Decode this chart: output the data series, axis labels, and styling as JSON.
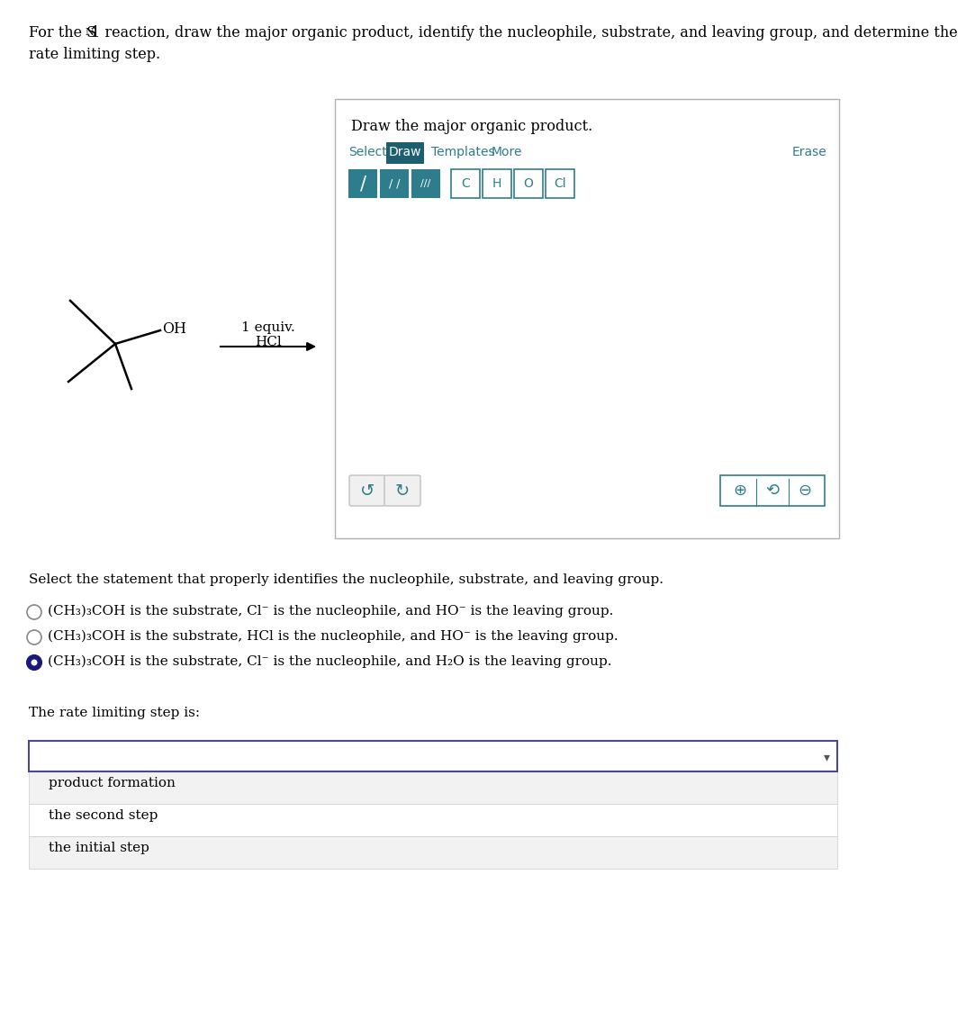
{
  "header1": "For the S",
  "header_sub": "N",
  "header2": "1 reaction, draw the major organic product, identify the nucleophile, substrate, and leaving group, and determine the",
  "header3": "rate limiting step.",
  "box_title": "Draw the major organic product.",
  "tab_select": "Select",
  "tab_draw": "Draw",
  "tab_templates": "Templates",
  "tab_more": "More",
  "tab_erase": "Erase",
  "reagent_line1": "1 equiv.",
  "reagent_line2": "HCl",
  "select_text": "Select the statement that properly identifies the nucleophile, substrate, and leaving group.",
  "option1": "(CH₃)₃COH is the substrate, Cl⁻ is the nucleophile, and HO⁻ is the leaving group.",
  "option2": "(CH₃)₃COH is the substrate, HCl is the nucleophile, and HO⁻ is the leaving group.",
  "option3": "(CH₃)₃COH is the substrate, Cl⁻ is the nucleophile, and H₂O is the leaving group.",
  "rate_text": "The rate limiting step is:",
  "dropdown_items": [
    "product formation",
    "the second step",
    "the initial step"
  ],
  "bg_color": "#ffffff",
  "box_border_color": "#b0b0b0",
  "teal_color": "#2e7d8c",
  "teal_dark": "#1d5f6e",
  "radio_filled_color": "#1a1a7a",
  "radio_empty_color": "#888888",
  "text_color": "#000000",
  "dropdown_border": "#4a4a88",
  "item_bg_alt": "#f2f2f2",
  "item_bg": "#ffffff",
  "btn_gray_bg": "#eeeeee",
  "btn_gray_border": "#bbbbbb"
}
